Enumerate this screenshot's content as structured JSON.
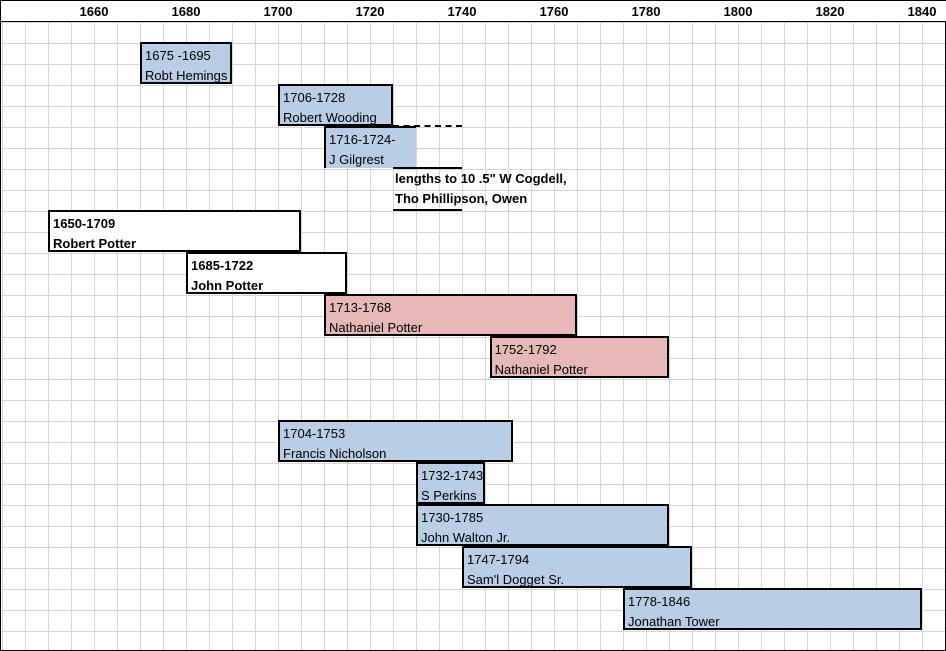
{
  "chart_data": {
    "type": "gantt",
    "x_ticks": [
      1660,
      1680,
      1700,
      1720,
      1740,
      1760,
      1780,
      1800,
      1820,
      1840
    ],
    "bars": [
      {
        "range": "1675 -1695",
        "name": "Robt Hemings",
        "start": 1670,
        "end": 1690,
        "row": 0,
        "color": "#b9cde5",
        "bold": false
      },
      {
        "range": "1706-1728",
        "name": "Robert Wooding",
        "start": 1700,
        "end": 1725,
        "row": 1,
        "color": "#b9cde5",
        "bold": false
      },
      {
        "range": "1716-1724-",
        "name": "J Gilgrest",
        "start": 1710,
        "end": 1730,
        "row": 2,
        "color": "#b9cde5",
        "bold": false,
        "open_right": true
      },
      {
        "range": "1650-1709",
        "name": "Robert Potter",
        "start": 1650,
        "end": 1705,
        "row": 4,
        "color": "#ffffff",
        "bold": true
      },
      {
        "range": "1685-1722",
        "name": "John Potter",
        "start": 1680,
        "end": 1715,
        "row": 5,
        "color": "#ffffff",
        "bold": true
      },
      {
        "range": "1713-1768",
        "name": "Nathaniel Potter",
        "start": 1710,
        "end": 1765,
        "row": 6,
        "color": "#e6b9b8",
        "bold": false
      },
      {
        "range": "1752-1792",
        "name": "Nathaniel Potter",
        "start": 1746,
        "end": 1785,
        "row": 7,
        "color": "#e6b9b8",
        "bold": false
      },
      {
        "range": "1704-1753",
        "name": "Francis Nicholson",
        "start": 1700,
        "end": 1751,
        "row": 9,
        "color": "#b9cde5",
        "bold": false
      },
      {
        "range": "1732-1743",
        "name": "S Perkins",
        "start": 1730,
        "end": 1745,
        "row": 10,
        "color": "#b9cde5",
        "bold": false
      },
      {
        "range": "1730-1785",
        "name": "John Walton Jr.",
        "start": 1730,
        "end": 1785,
        "row": 11,
        "color": "#b9cde5",
        "bold": false
      },
      {
        "range": "1747-1794",
        "name": "Sam'l Dogget Sr.",
        "start": 1740,
        "end": 1790,
        "row": 12,
        "color": "#b9cde5",
        "bold": false
      },
      {
        "range": "1778-1846",
        "name": "Jonathan Tower",
        "start": 1775,
        "end": 1840,
        "row": 13,
        "color": "#b9cde5",
        "bold": false
      }
    ],
    "annotation": {
      "line1": "lengths to 10 .5\" W Cogdell,",
      "line2": "Tho Phillipson, Owen"
    }
  }
}
